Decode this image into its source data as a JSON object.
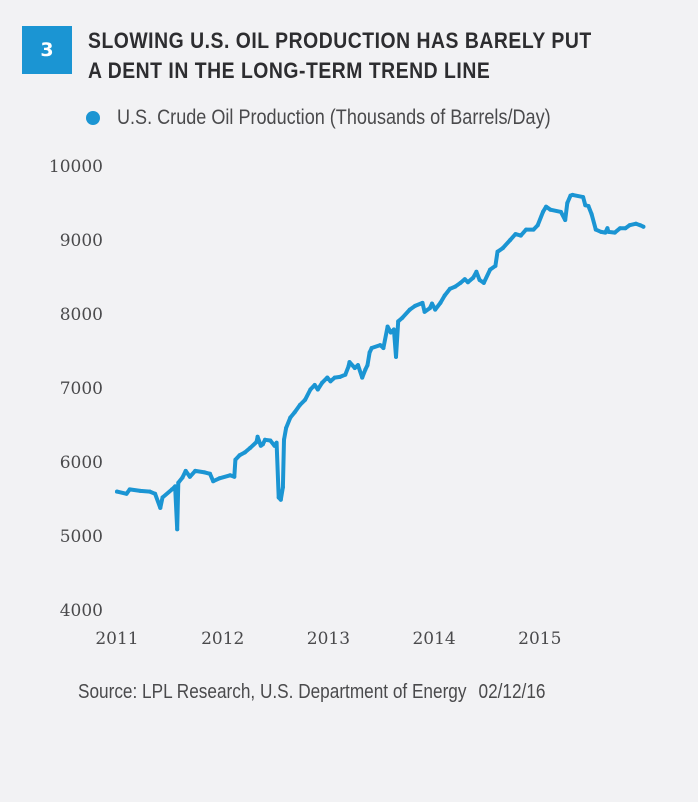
{
  "figure": {
    "number": "3",
    "title_lines": [
      "SLOWING U.S. OIL PRODUCTION HAS BARELY PUT",
      "A DENT IN THE LONG-TERM TREND LINE"
    ],
    "source": "Source: LPL Research, U.S. Department of Energy",
    "date": "02/12/16",
    "accent_color": "#1b95d3"
  },
  "chart_data": {
    "type": "line",
    "title": "SLOWING U.S. OIL PRODUCTION HAS BARELY PUT A DENT IN THE LONG-TERM TREND LINE",
    "xlabel": "",
    "ylabel": "",
    "xlim": [
      2011,
      2016
    ],
    "ylim": [
      4000,
      10000
    ],
    "x_ticks": [
      2011,
      2012,
      2013,
      2014,
      2015
    ],
    "x_tick_labels": [
      "2011",
      "2012",
      "2013",
      "2014",
      "2015"
    ],
    "y_ticks": [
      4000,
      5000,
      6000,
      7000,
      8000,
      9000,
      10000
    ],
    "y_tick_labels": [
      "4000",
      "5000",
      "6000",
      "7000",
      "8000",
      "9000",
      "10000"
    ],
    "grid": false,
    "legend": "top-left",
    "series": [
      {
        "name": "U.S. Crude Oil Production (Thousands of Barrels/Day)",
        "color": "#1b95d3",
        "x": [
          2011.0,
          2011.09,
          2011.12,
          2011.22,
          2011.31,
          2011.36,
          2011.41,
          2011.43,
          2011.52,
          2011.55,
          2011.57,
          2011.58,
          2011.62,
          2011.65,
          2011.69,
          2011.74,
          2011.83,
          2011.88,
          2011.91,
          2011.97,
          2012.07,
          2012.11,
          2012.12,
          2012.16,
          2012.21,
          2012.26,
          2012.32,
          2012.33,
          2012.36,
          2012.38,
          2012.4,
          2012.45,
          2012.49,
          2012.51,
          2012.53,
          2012.55,
          2012.57,
          2012.58,
          2012.6,
          2012.64,
          2012.68,
          2012.73,
          2012.78,
          2012.83,
          2012.87,
          2012.9,
          2012.94,
          2012.99,
          2013.02,
          2013.06,
          2013.11,
          2013.16,
          2013.19,
          2013.2,
          2013.25,
          2013.28,
          2013.32,
          2013.35,
          2013.37,
          2013.39,
          2013.41,
          2013.49,
          2013.52,
          2013.56,
          2013.59,
          2013.62,
          2013.64,
          2013.66,
          2013.7,
          2013.77,
          2013.82,
          2013.89,
          2013.91,
          2013.96,
          2013.98,
          2014.01,
          2014.06,
          2014.1,
          2014.15,
          2014.2,
          2014.25,
          2014.29,
          2014.32,
          2014.37,
          2014.4,
          2014.43,
          2014.47,
          2014.53,
          2014.58,
          2014.6,
          2014.65,
          2014.72,
          2014.77,
          2014.82,
          2014.87,
          2014.94,
          2014.98,
          2015.03,
          2015.06,
          2015.1,
          2015.2,
          2015.24,
          2015.26,
          2015.29,
          2015.31,
          2015.41,
          2015.43,
          2015.46,
          2015.49,
          2015.53,
          2015.58,
          2015.62,
          2015.64,
          2015.65,
          2015.71,
          2015.76,
          2015.81,
          2015.85,
          2015.91,
          2015.95,
          2015.98
        ],
        "values": [
          5600,
          5570,
          5630,
          5610,
          5600,
          5570,
          5380,
          5520,
          5630,
          5670,
          5090,
          5720,
          5790,
          5880,
          5800,
          5880,
          5860,
          5840,
          5740,
          5780,
          5820,
          5800,
          6030,
          6090,
          6130,
          6190,
          6270,
          6340,
          6220,
          6240,
          6300,
          6290,
          6220,
          6260,
          5520,
          5490,
          5660,
          6300,
          6460,
          6600,
          6670,
          6770,
          6840,
          6980,
          7040,
          6980,
          7070,
          7140,
          7090,
          7140,
          7150,
          7180,
          7290,
          7350,
          7270,
          7310,
          7140,
          7250,
          7310,
          7480,
          7540,
          7580,
          7540,
          7830,
          7750,
          7790,
          7420,
          7900,
          7950,
          8060,
          8110,
          8150,
          8030,
          8080,
          8140,
          8060,
          8150,
          8250,
          8340,
          8370,
          8420,
          8470,
          8430,
          8490,
          8570,
          8460,
          8420,
          8600,
          8650,
          8840,
          8890,
          9000,
          9080,
          9060,
          9140,
          9140,
          9200,
          9380,
          9450,
          9410,
          9380,
          9270,
          9500,
          9600,
          9610,
          9580,
          9470,
          9460,
          9350,
          9140,
          9110,
          9100,
          9160,
          9110,
          9100,
          9160,
          9160,
          9200,
          9220,
          9200,
          9180
        ]
      }
    ]
  }
}
